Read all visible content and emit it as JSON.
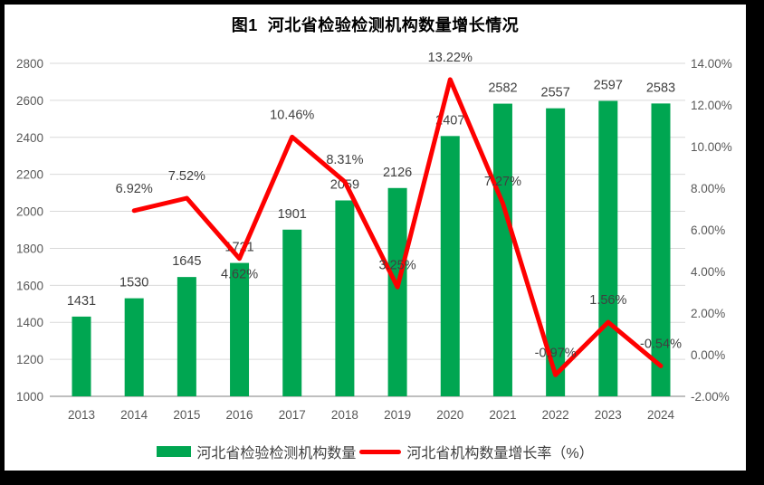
{
  "title": "图1  河北省检验检测机构数量增长情况",
  "chart_data": {
    "type": "bar+line",
    "categories": [
      "2013",
      "2014",
      "2015",
      "2016",
      "2017",
      "2018",
      "2019",
      "2020",
      "2021",
      "2022",
      "2023",
      "2024"
    ],
    "series": [
      {
        "name": "河北省检验检测机构数量",
        "type": "bar",
        "axis": "left",
        "color": "#00A651",
        "values": [
          1431,
          1530,
          1645,
          1721,
          1901,
          2059,
          2126,
          2407,
          2582,
          2557,
          2597,
          2583
        ]
      },
      {
        "name": "河北省机构数量增长率（%）",
        "type": "line",
        "axis": "right",
        "color": "#FE0000",
        "values": [
          null,
          6.92,
          7.52,
          4.62,
          10.46,
          8.31,
          3.25,
          13.22,
          7.27,
          -0.97,
          1.56,
          -0.54
        ],
        "label_below_indices": [
          3
        ]
      }
    ],
    "axes": {
      "left": {
        "min": 1000,
        "max": 2800,
        "step": 200
      },
      "right": {
        "min": -2,
        "max": 14,
        "step": 2,
        "decimals": 2,
        "suffix": "%"
      }
    },
    "grid": true,
    "legend_position": "bottom"
  },
  "colors": {
    "bar": "#00A651",
    "line": "#FE0000",
    "grid": "#D9D9D9",
    "axis_line": "#BFBFBF",
    "tick_text": "#595959",
    "label_text": "#404040",
    "title_text": "#000000",
    "frame": "#000000",
    "page": "#FFFFFF"
  }
}
